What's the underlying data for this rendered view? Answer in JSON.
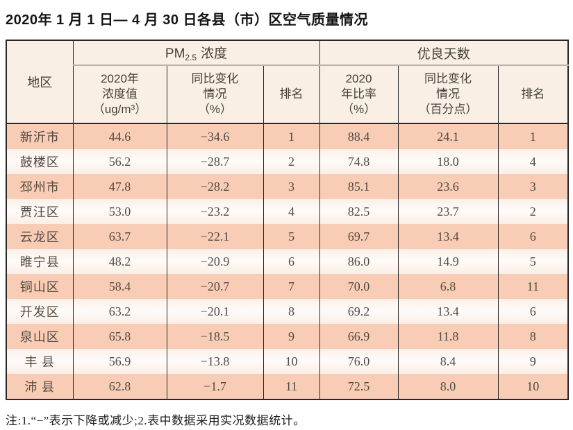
{
  "title": "2020年 1 月 1 日— 4 月 30 日各县（市）区空气质量情况",
  "table": {
    "corner_header": "地区",
    "group_pm": {
      "prefix": "PM",
      "sub": "2.5",
      "suffix": "浓度"
    },
    "group_good": "优良天数",
    "sub_headers": {
      "pm_value": "2020年\n浓度值\n（ug/m³）",
      "pm_change": "同比变化\n情况\n（%）",
      "pm_rank": "排名",
      "good_ratio": "2020\n年比率\n（%）",
      "good_change": "同比变化\n情况\n（百分点）",
      "good_rank": "排名"
    },
    "rows": [
      {
        "region": "新沂市",
        "pm_value": "44.6",
        "pm_change": "−34.6",
        "pm_rank": "1",
        "good_ratio": "88.4",
        "good_change": "24.1",
        "good_rank": "1"
      },
      {
        "region": "鼓楼区",
        "pm_value": "56.2",
        "pm_change": "−28.7",
        "pm_rank": "2",
        "good_ratio": "74.8",
        "good_change": "18.0",
        "good_rank": "4"
      },
      {
        "region": "邳州市",
        "pm_value": "47.8",
        "pm_change": "−28.2",
        "pm_rank": "3",
        "good_ratio": "85.1",
        "good_change": "23.6",
        "good_rank": "3"
      },
      {
        "region": "贾汪区",
        "pm_value": "53.0",
        "pm_change": "−23.2",
        "pm_rank": "4",
        "good_ratio": "82.5",
        "good_change": "23.7",
        "good_rank": "2"
      },
      {
        "region": "云龙区",
        "pm_value": "63.7",
        "pm_change": "−22.1",
        "pm_rank": "5",
        "good_ratio": "69.7",
        "good_change": "13.4",
        "good_rank": "6"
      },
      {
        "region": "睢宁县",
        "pm_value": "48.2",
        "pm_change": "−20.9",
        "pm_rank": "6",
        "good_ratio": "86.0",
        "good_change": "14.9",
        "good_rank": "5"
      },
      {
        "region": "铜山区",
        "pm_value": "58.4",
        "pm_change": "−20.7",
        "pm_rank": "7",
        "good_ratio": "70.0",
        "good_change": "6.8",
        "good_rank": "11"
      },
      {
        "region": "开发区",
        "pm_value": "63.2",
        "pm_change": "−20.1",
        "pm_rank": "8",
        "good_ratio": "69.2",
        "good_change": "13.4",
        "good_rank": "6"
      },
      {
        "region": "泉山区",
        "pm_value": "65.8",
        "pm_change": "−18.5",
        "pm_rank": "9",
        "good_ratio": "66.9",
        "good_change": "11.8",
        "good_rank": "8"
      },
      {
        "region": "丰 县",
        "pm_value": "56.9",
        "pm_change": "−13.8",
        "pm_rank": "10",
        "good_ratio": "76.0",
        "good_change": "8.4",
        "good_rank": "9"
      },
      {
        "region": "沛 县",
        "pm_value": "62.8",
        "pm_change": "−1.7",
        "pm_rank": "11",
        "good_ratio": "72.5",
        "good_change": "8.0",
        "good_rank": "10"
      }
    ]
  },
  "note": "注:1.“−”表示下降或减少;2.表中数据采用实况数据统计。",
  "colors": {
    "row_salmon": "#f8ccb5",
    "row_light": "#fdf3ed",
    "header_bg": "#f9efe5",
    "grid_line": "#282828",
    "group_divider": "#bbb2aa"
  }
}
